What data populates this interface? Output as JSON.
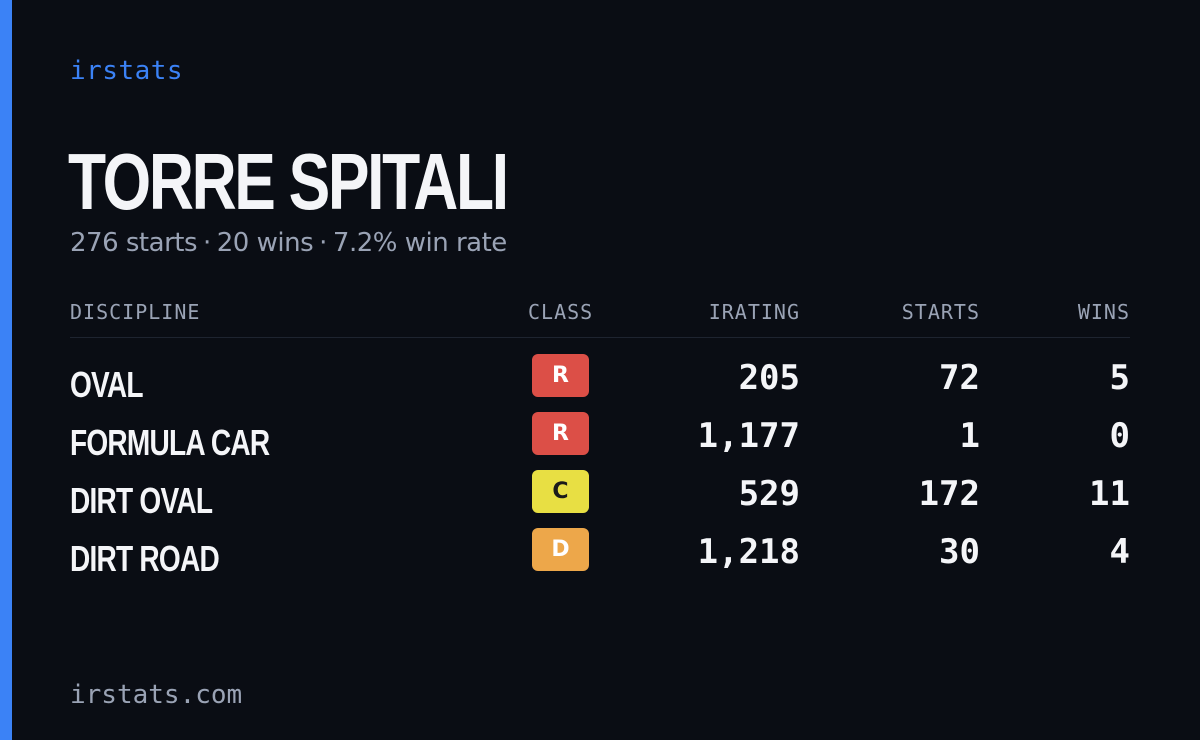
{
  "brand": "irstats",
  "driver": {
    "name": "TORRE SPITALI"
  },
  "summary": {
    "starts": "276 starts",
    "wins": "20 wins",
    "win_rate": "7.2% win rate",
    "separator": "·"
  },
  "table": {
    "headers": {
      "discipline": "DISCIPLINE",
      "class": "CLASS",
      "irating": "IRATING",
      "starts": "STARTS",
      "wins": "WINS"
    },
    "rows": [
      {
        "discipline": "OVAL",
        "class": "R",
        "irating": "205",
        "starts": "72",
        "wins": "5"
      },
      {
        "discipline": "FORMULA CAR",
        "class": "R",
        "irating": "1,177",
        "starts": "1",
        "wins": "0"
      },
      {
        "discipline": "DIRT OVAL",
        "class": "C",
        "irating": "529",
        "starts": "172",
        "wins": "11"
      },
      {
        "discipline": "DIRT ROAD",
        "class": "D",
        "irating": "1,218",
        "starts": "30",
        "wins": "4"
      }
    ]
  },
  "colors": {
    "accent": "#3b82f6",
    "background": "#0a0d14",
    "class_r": "#dc4f47",
    "class_c": "#e8df43",
    "class_d": "#eda74a"
  },
  "footer": "irstats.com"
}
